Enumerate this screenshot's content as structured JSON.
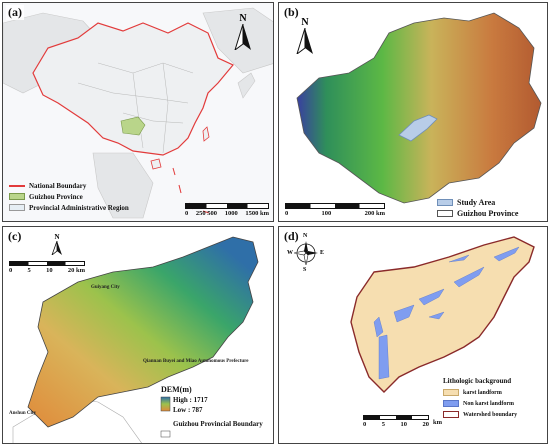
{
  "panel_a": {
    "label": "(a)",
    "north": "N",
    "legend": [
      {
        "text": "National Boundary",
        "color": "#e23b3b",
        "kind": "line"
      },
      {
        "text": "Guizhou Province",
        "color": "#b9d58a",
        "kind": "fill"
      },
      {
        "text": "Provincial Administrative Region",
        "color": "#e6eef4",
        "kind": "fill"
      }
    ],
    "scale_ticks": [
      "0",
      "250 500",
      "1000",
      "1500 km"
    ]
  },
  "panel_b": {
    "label": "(b)",
    "north": "N",
    "legend": [
      {
        "text": "Study Area",
        "color": "#b8cde8",
        "kind": "fill"
      },
      {
        "text": "Guizhou Province",
        "color": "#ffffff",
        "kind": "fill"
      }
    ],
    "scale_ticks": [
      "0",
      "100",
      "200 km"
    ]
  },
  "panel_c": {
    "label": "(c)",
    "north": "N",
    "scale_ticks": [
      "0",
      "5",
      "10",
      "20 km"
    ],
    "cities": [
      "Guiyang City",
      "Qiannan Buyei and Miao Autonomous Prefecture",
      "Anshun City"
    ],
    "dem_title": "DEM(m)",
    "dem_high": "High : 1717",
    "dem_low": "Low : 787",
    "boundary_label": "Guizhou Provincial Boundary"
  },
  "panel_d": {
    "label": "(d)",
    "compass": {
      "n": "N",
      "s": "S",
      "e": "E",
      "w": "W"
    },
    "legend_title": "Lithologic background",
    "legend": [
      {
        "text": "karst landform",
        "color": "#f6deb0"
      },
      {
        "text": "Non karst landform",
        "color": "#7f9df0"
      },
      {
        "text": "Watershed boundary",
        "color": "#ffffff"
      }
    ],
    "scale_ticks": [
      "0",
      "5",
      "10",
      "20"
    ],
    "scale_unit": "km"
  },
  "colors": {
    "china_fill": "#eef0f2",
    "sea": "#ffffff",
    "national_boundary": "#e23b3b",
    "karst": "#f6deb0",
    "non_karst": "#7f9df0",
    "watershed": "#8a2a2a"
  }
}
